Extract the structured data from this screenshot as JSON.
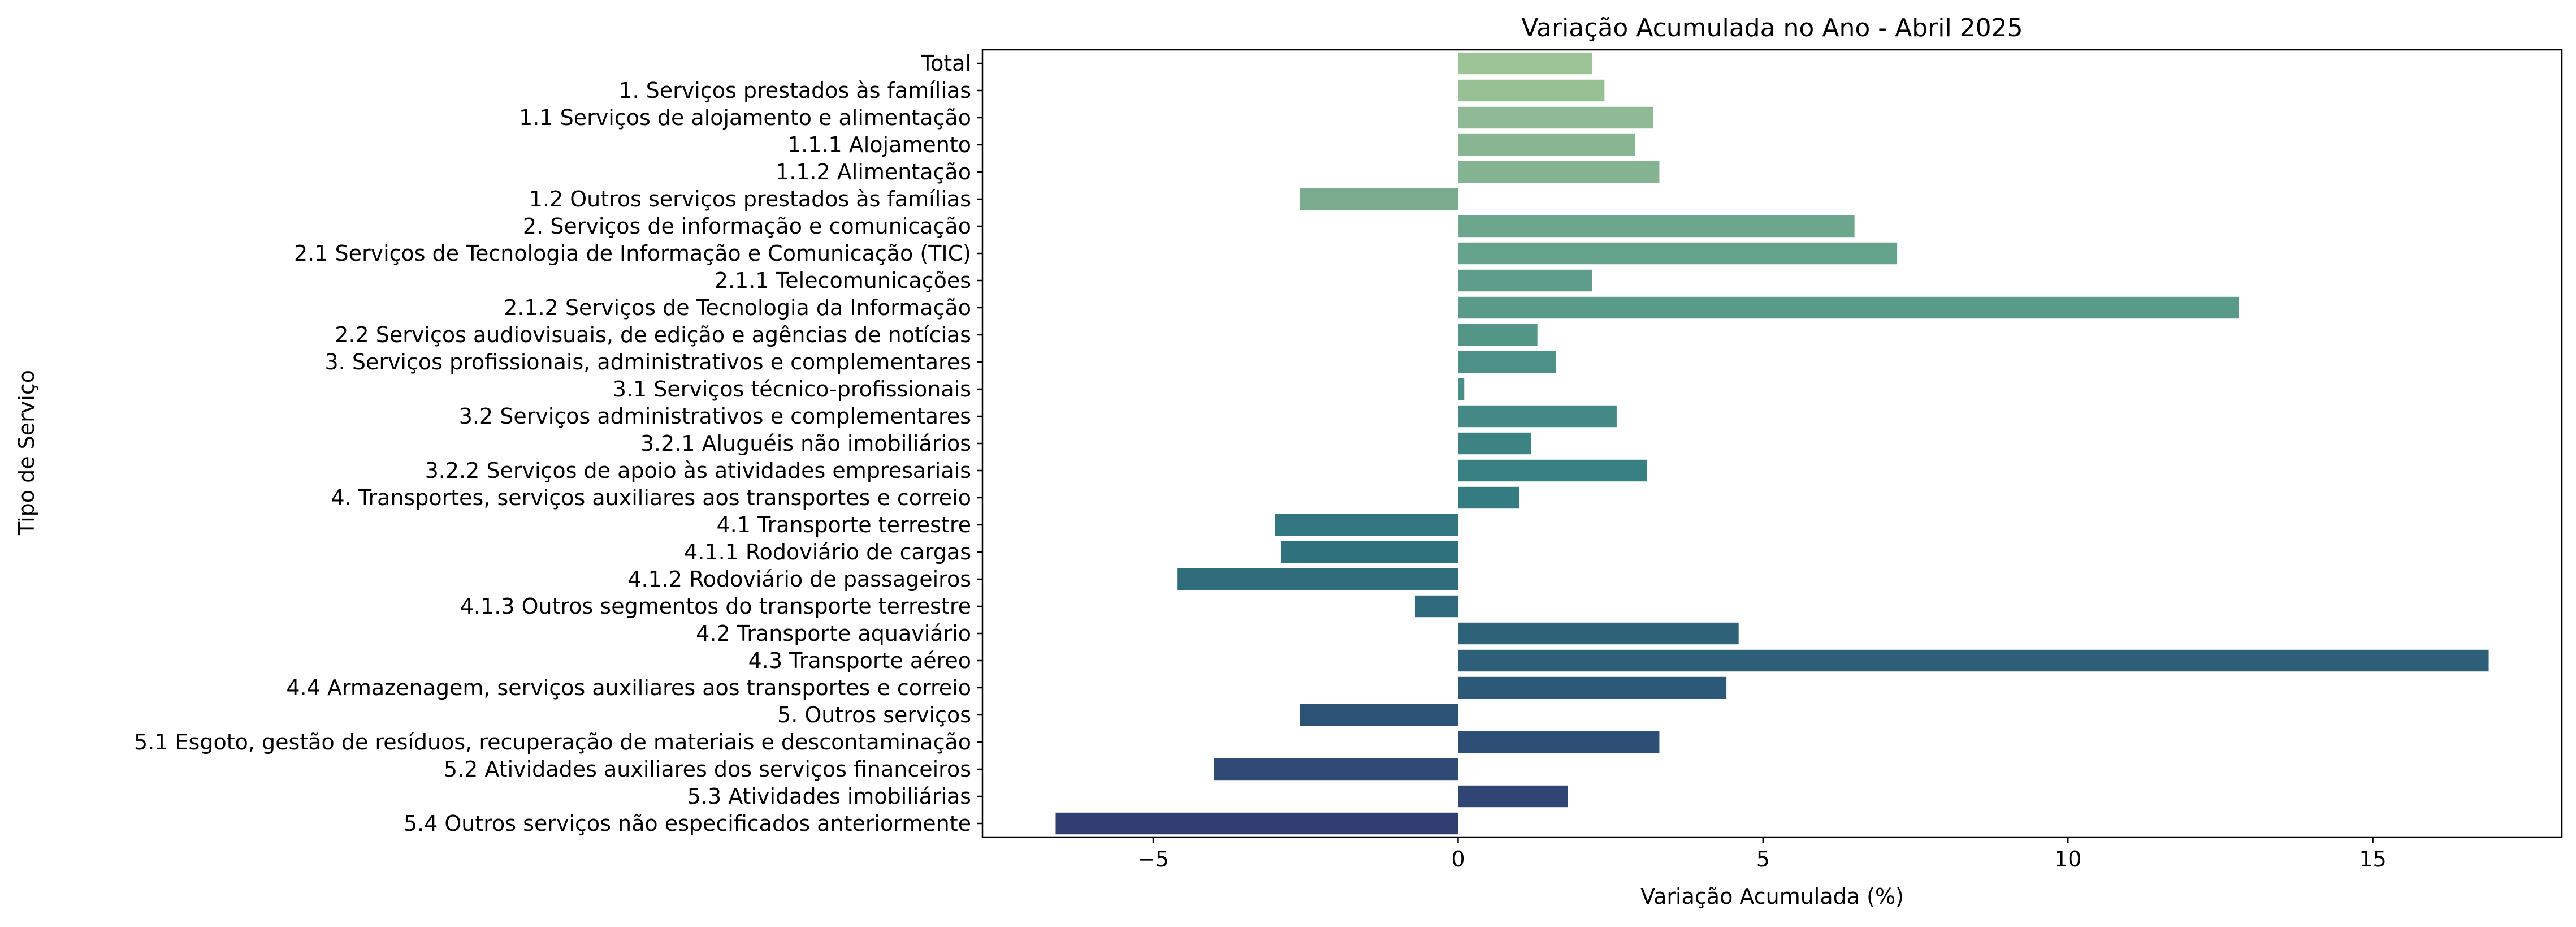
{
  "chart_data": {
    "type": "bar",
    "orientation": "horizontal",
    "title": "Variação Acumulada no Ano - Abril 2025",
    "xlabel": "Variação Acumulada (%)",
    "ylabel": "Tipo de Serviço",
    "xlim": [
      -7.8,
      18.1
    ],
    "xticks": [
      -5,
      0,
      5,
      10,
      15
    ],
    "xtick_labels": [
      "−5",
      "0",
      "5",
      "10",
      "15"
    ],
    "grid": false,
    "legend": "none",
    "categories": [
      "Total",
      "1. Serviços prestados às famílias",
      "1.1 Serviços de alojamento e alimentação",
      "1.1.1 Alojamento",
      "1.1.2 Alimentação",
      "1.2 Outros serviços prestados às famílias",
      "2. Serviços de informação e comunicação",
      "2.1 Serviços de Tecnologia de Informação e Comunicação (TIC)",
      "2.1.1 Telecomunicações",
      "2.1.2 Serviços de Tecnologia da Informação",
      "2.2 Serviços audiovisuais, de edição e agências de notícias",
      "3. Serviços profissionais, administrativos e complementares",
      "3.1 Serviços técnico-profissionais",
      "3.2 Serviços administrativos e complementares",
      "3.2.1 Aluguéis não imobiliários",
      "3.2.2 Serviços de apoio às atividades empresariais",
      "4. Transportes, serviços auxiliares aos transportes e correio",
      "4.1 Transporte terrestre",
      "4.1.1 Rodoviário de cargas",
      "4.1.2 Rodoviário de passageiros",
      "4.1.3 Outros segmentos do transporte terrestre",
      "4.2 Transporte aquaviário",
      "4.3 Transporte aéreo",
      "4.4 Armazenagem, serviços auxiliares aos transportes e correio",
      "5. Outros serviços",
      "5.1 Esgoto, gestão de resíduos, recuperação de materiais e descontaminação",
      "5.2 Atividades auxiliares dos serviços financeiros",
      "5.3 Atividades imobiliárias",
      "5.4 Outros serviços não especificados anteriormente"
    ],
    "values": [
      2.2,
      2.4,
      3.2,
      2.9,
      3.3,
      -2.6,
      6.5,
      7.2,
      2.2,
      12.8,
      1.3,
      1.6,
      0.1,
      2.6,
      1.2,
      3.1,
      1.0,
      -3.0,
      -2.9,
      -4.6,
      -0.7,
      4.6,
      16.9,
      4.4,
      -2.6,
      3.3,
      -4.0,
      1.8,
      -6.6
    ],
    "colors": [
      "#9cc497",
      "#97c095",
      "#8eb994",
      "#89b692",
      "#84b391",
      "#7aab8e",
      "#6ba68d",
      "#65a28c",
      "#5f9d8b",
      "#5a9a89",
      "#539587",
      "#4d9087",
      "#498d86",
      "#448985",
      "#3e8383",
      "#398083",
      "#357b82",
      "#327680",
      "#30717e",
      "#2f6d7c",
      "#2e6a7b",
      "#2d6279",
      "#2d5f78",
      "#2c5977",
      "#2c5376",
      "#2d4f75",
      "#2f4a74",
      "#304573",
      "#303e71"
    ]
  }
}
